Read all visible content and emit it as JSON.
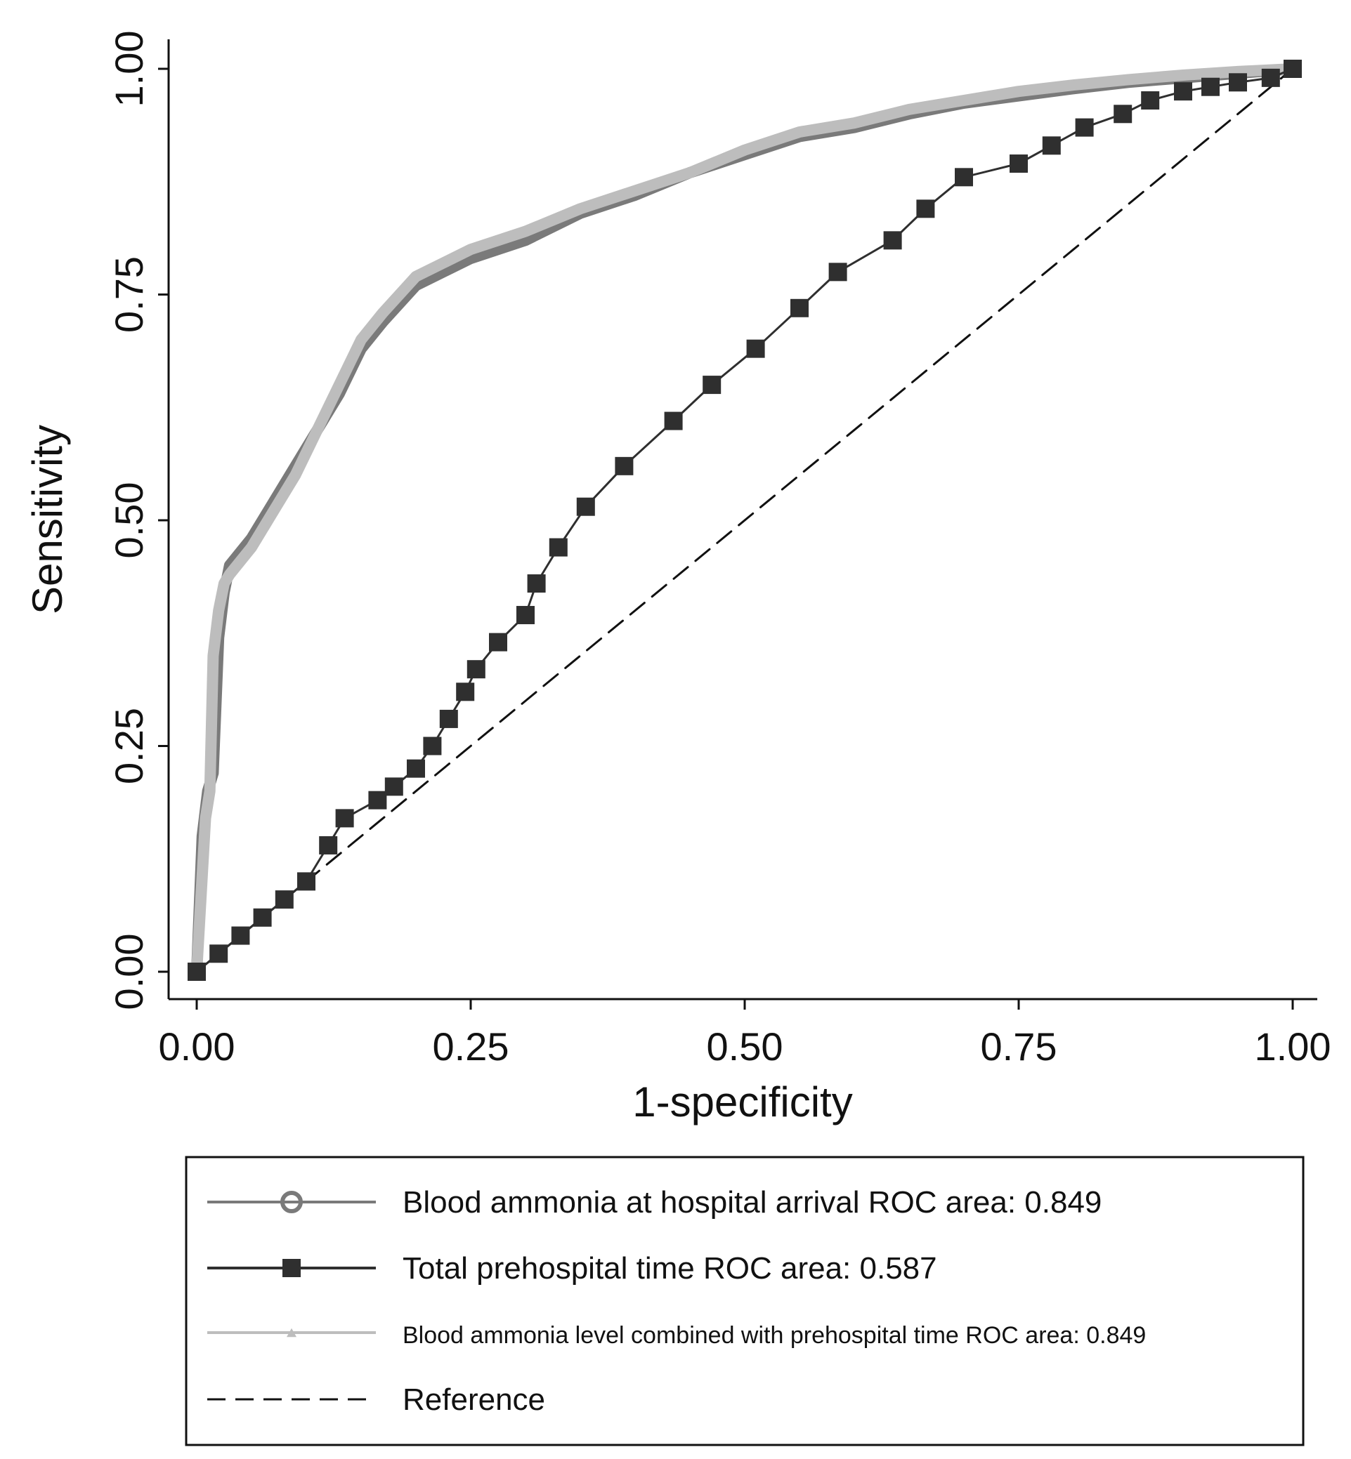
{
  "chart_data": {
    "type": "line",
    "title": "",
    "xlabel": "1-specificity",
    "ylabel": "Sensitivity",
    "xlim": [
      0,
      1
    ],
    "ylim": [
      0,
      1
    ],
    "x_ticks": [
      "0.00",
      "0.25",
      "0.50",
      "0.75",
      "1.00"
    ],
    "y_ticks": [
      "0.00",
      "0.25",
      "0.50",
      "0.75",
      "1.00"
    ],
    "grid": false,
    "legend_position": "bottom",
    "series": [
      {
        "name": "Blood ammonia at hospital arrival ROC area: 0.849",
        "color": "#7a7a7a",
        "marker": "circle",
        "x": [
          0,
          0.005,
          0.01,
          0.015,
          0.02,
          0.025,
          0.03,
          0.05,
          0.07,
          0.09,
          0.11,
          0.13,
          0.15,
          0.17,
          0.2,
          0.25,
          0.3,
          0.35,
          0.4,
          0.45,
          0.5,
          0.55,
          0.6,
          0.65,
          0.7,
          0.75,
          0.8,
          0.85,
          0.9,
          0.95,
          1
        ],
        "y": [
          0,
          0.15,
          0.2,
          0.22,
          0.37,
          0.42,
          0.45,
          0.48,
          0.52,
          0.56,
          0.6,
          0.64,
          0.69,
          0.72,
          0.76,
          0.79,
          0.81,
          0.84,
          0.86,
          0.885,
          0.905,
          0.925,
          0.935,
          0.95,
          0.962,
          0.97,
          0.978,
          0.985,
          0.99,
          0.995,
          1
        ]
      },
      {
        "name": "Total prehospital time ROC area: 0.587",
        "color": "#2f2f2f",
        "marker": "square",
        "x": [
          0,
          0.02,
          0.04,
          0.06,
          0.08,
          0.1,
          0.12,
          0.135,
          0.165,
          0.18,
          0.2,
          0.215,
          0.23,
          0.245,
          0.255,
          0.275,
          0.3,
          0.31,
          0.33,
          0.355,
          0.39,
          0.435,
          0.47,
          0.51,
          0.55,
          0.585,
          0.635,
          0.665,
          0.7,
          0.75,
          0.78,
          0.81,
          0.845,
          0.87,
          0.9,
          0.925,
          0.95,
          0.98,
          1
        ],
        "y": [
          0,
          0.02,
          0.04,
          0.06,
          0.08,
          0.1,
          0.14,
          0.17,
          0.19,
          0.205,
          0.225,
          0.25,
          0.28,
          0.31,
          0.335,
          0.365,
          0.395,
          0.43,
          0.47,
          0.515,
          0.56,
          0.61,
          0.65,
          0.69,
          0.735,
          0.775,
          0.81,
          0.845,
          0.88,
          0.895,
          0.915,
          0.935,
          0.95,
          0.965,
          0.975,
          0.98,
          0.985,
          0.99,
          1
        ]
      },
      {
        "name": "Blood ammonia level combined with prehospital time ROC area: 0.849",
        "color": "#bdbdbd",
        "marker": "triangle",
        "x": [
          0,
          0.008,
          0.012,
          0.015,
          0.02,
          0.025,
          0.03,
          0.05,
          0.07,
          0.09,
          0.11,
          0.13,
          0.15,
          0.17,
          0.2,
          0.25,
          0.3,
          0.35,
          0.4,
          0.45,
          0.5,
          0.55,
          0.6,
          0.65,
          0.7,
          0.75,
          0.8,
          0.85,
          0.9,
          0.95,
          1
        ],
        "y": [
          0,
          0.17,
          0.2,
          0.35,
          0.4,
          0.43,
          0.44,
          0.47,
          0.51,
          0.55,
          0.6,
          0.65,
          0.7,
          0.73,
          0.77,
          0.8,
          0.82,
          0.845,
          0.865,
          0.885,
          0.91,
          0.93,
          0.94,
          0.955,
          0.965,
          0.975,
          0.982,
          0.988,
          0.993,
          0.997,
          1
        ]
      },
      {
        "name": "Reference",
        "color": "#111111",
        "marker": "none",
        "dash": true,
        "x": [
          0,
          1
        ],
        "y": [
          0,
          1
        ]
      }
    ]
  }
}
